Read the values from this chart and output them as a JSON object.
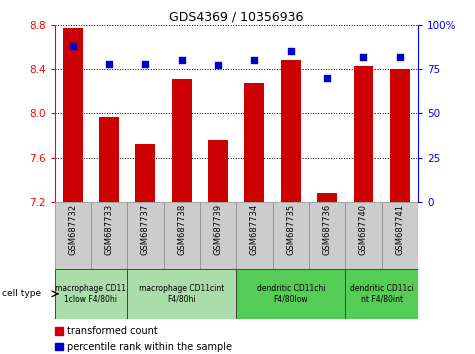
{
  "title": "GDS4369 / 10356936",
  "samples": [
    "GSM687732",
    "GSM687733",
    "GSM687737",
    "GSM687738",
    "GSM687739",
    "GSM687734",
    "GSM687735",
    "GSM687736",
    "GSM687740",
    "GSM687741"
  ],
  "transformed_counts": [
    8.77,
    7.97,
    7.72,
    8.31,
    7.76,
    8.27,
    8.48,
    7.28,
    8.43,
    8.4
  ],
  "percentile_ranks": [
    88,
    78,
    78,
    80,
    77,
    80,
    85,
    70,
    82,
    82
  ],
  "ylim_left": [
    7.2,
    8.8
  ],
  "ylim_right": [
    0,
    100
  ],
  "yticks_left": [
    7.2,
    7.6,
    8.0,
    8.4,
    8.8
  ],
  "yticks_right": [
    0,
    25,
    50,
    75,
    100
  ],
  "bar_color": "#cc0000",
  "dot_color": "#0000cc",
  "cell_type_groups": [
    {
      "label": "macrophage CD11\n1clow F4/80hi",
      "start": 0,
      "end": 2,
      "color": "#aaddaa"
    },
    {
      "label": "macrophage CD11cint\nF4/80hi",
      "start": 2,
      "end": 5,
      "color": "#aaddaa"
    },
    {
      "label": "dendritic CD11chi\nF4/80low",
      "start": 5,
      "end": 8,
      "color": "#55cc55"
    },
    {
      "label": "dendritic CD11ci\nnt F4/80int",
      "start": 8,
      "end": 10,
      "color": "#55cc55"
    }
  ],
  "legend_bar_label": "transformed count",
  "legend_dot_label": "percentile rank within the sample",
  "cell_type_label": "cell type",
  "bg_color": "#ffffff",
  "sample_box_color": "#cccccc",
  "title_fontsize": 9,
  "axis_fontsize": 7.5,
  "sample_fontsize": 6,
  "legend_fontsize": 7
}
